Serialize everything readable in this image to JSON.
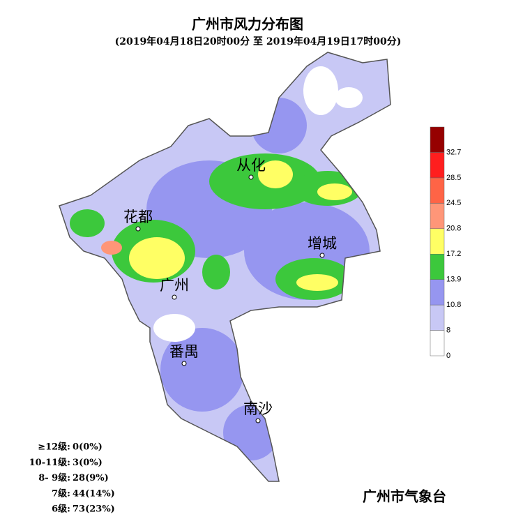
{
  "title": "广州市风力分布图",
  "subtitle": "(2019年04月18日20时00分 至 2019年04月19日17时00分)",
  "places": [
    {
      "label": "从化"
    },
    {
      "label": "花都"
    },
    {
      "label": "增城"
    },
    {
      "label": "广州"
    },
    {
      "label": "番禺"
    },
    {
      "label": "南沙"
    }
  ],
  "legend": {
    "labels": [
      "0",
      "8",
      "10.8",
      "13.9",
      "17.2",
      "20.8",
      "24.5",
      "28.5",
      "32.7"
    ],
    "colors": [
      "#ffffff",
      "#c8c8f5",
      "#9696f0",
      "#3cc83c",
      "#ffff64",
      "#ff9678",
      "#ff6446",
      "#ff1e1e",
      "#960000"
    ]
  },
  "stats": [
    {
      "level": "≥12级:",
      "value": "0(0%)"
    },
    {
      "level": "10-11级:",
      "value": "3(0%)"
    },
    {
      "level": "8- 9级:",
      "value": "28(9%)"
    },
    {
      "level": "7级:",
      "value": "44(14%)"
    },
    {
      "level": "6级:",
      "value": "73(23%)"
    }
  ],
  "footer": "广州市气象台"
}
